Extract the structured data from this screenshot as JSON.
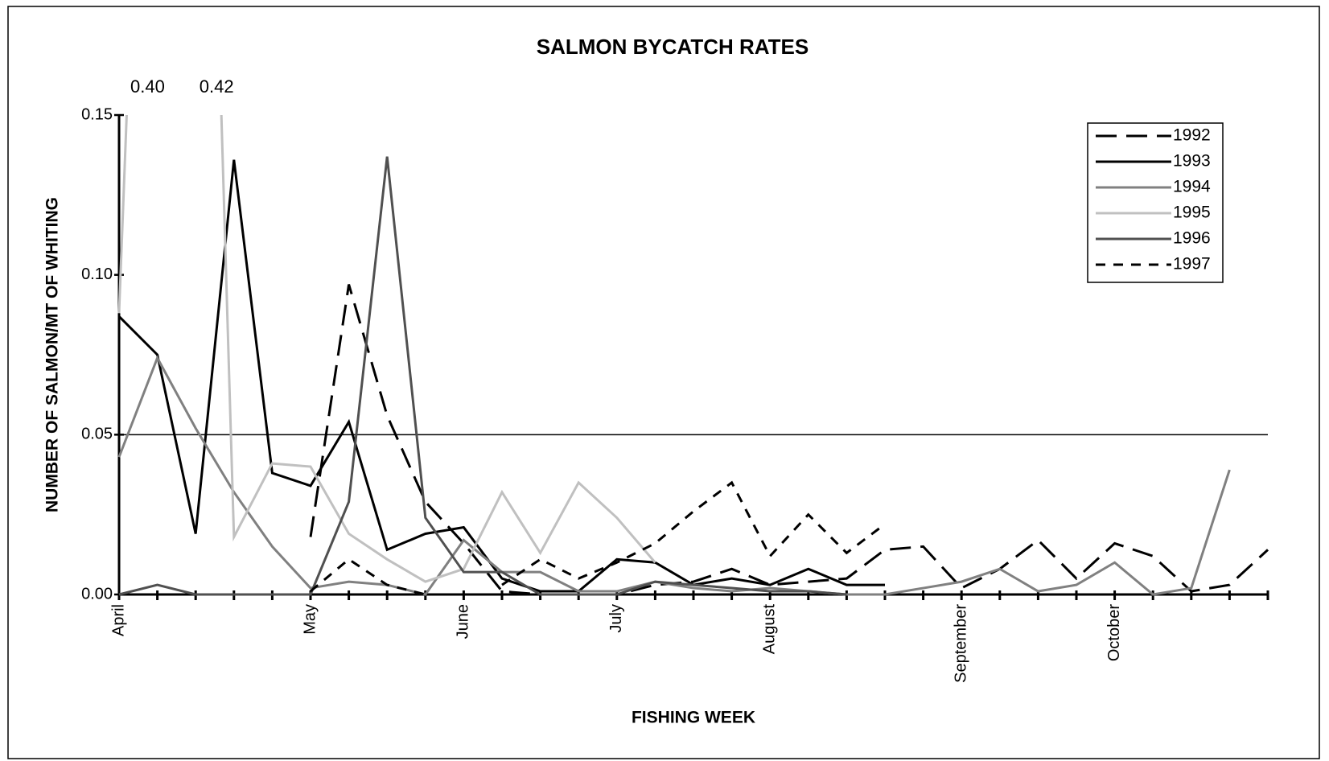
{
  "chart_data": {
    "type": "line",
    "title": "SALMON BYCATCH RATES",
    "x_label": "FISHING WEEK",
    "y_label": "NUMBER OF SALMON/MT OF WHITING",
    "categories": [
      "April",
      null,
      null,
      null,
      null,
      "May",
      null,
      null,
      null,
      "June",
      null,
      null,
      null,
      "July",
      null,
      null,
      null,
      "August",
      null,
      null,
      null,
      null,
      "September",
      null,
      null,
      null,
      "October",
      null,
      null,
      null,
      null
    ],
    "ylim": [
      0,
      0.15
    ],
    "yticks": [
      {
        "value": 0,
        "label": "0.00"
      },
      {
        "value": 0.05,
        "label": "0.05"
      },
      {
        "value": 0.1,
        "label": "0.10"
      },
      {
        "value": 0.15,
        "label": "0.15"
      }
    ],
    "reference_line": 0.05,
    "legend": "top-right",
    "series": [
      {
        "name": "1992",
        "color": "#000000",
        "dash": "long",
        "values": [
          null,
          null,
          null,
          null,
          null,
          0.018,
          0.097,
          0.056,
          0.029,
          0.016,
          0.001,
          0.0,
          0.0,
          0.0,
          0.003,
          0.004,
          0.008,
          0.003,
          0.004,
          0.005,
          0.014,
          0.015,
          0.002,
          0.008,
          0.017,
          0.005,
          0.016,
          0.012,
          0.001,
          0.003,
          0.014
        ]
      },
      {
        "name": "1993",
        "color": "#000000",
        "values": [
          0.087,
          0.075,
          0.019,
          0.136,
          0.038,
          0.034,
          0.054,
          0.014,
          0.019,
          0.021,
          0.005,
          0.001,
          0.001,
          0.011,
          0.01,
          0.003,
          0.005,
          0.003,
          0.008,
          0.003,
          0.003,
          null,
          null,
          null,
          null,
          null,
          null,
          null,
          null,
          null,
          null
        ]
      },
      {
        "name": "1994",
        "color": "#808080",
        "values": [
          0.043,
          0.074,
          0.052,
          0.032,
          0.015,
          0.002,
          0.004,
          0.003,
          0.0,
          0.017,
          0.007,
          0.007,
          0.001,
          0.001,
          0.004,
          0.002,
          0.001,
          0.002,
          0.001,
          0.0,
          0.0,
          0.002,
          0.004,
          0.008,
          0.001,
          0.003,
          0.01,
          0.0,
          0.002,
          0.039,
          null
        ]
      },
      {
        "name": "1995",
        "color": "#c0c0c0",
        "values": [
          0.088,
          0.4,
          0.42,
          0.018,
          0.041,
          0.04,
          0.019,
          0.011,
          0.004,
          0.008,
          0.032,
          0.013,
          0.035,
          0.024,
          0.01,
          null,
          null,
          null,
          null,
          null,
          null,
          null,
          null,
          null,
          null,
          null,
          null,
          null,
          null,
          null,
          null
        ],
        "value_labels": [
          null,
          "0.40",
          "0.42",
          null,
          null,
          null,
          null,
          null,
          null,
          null,
          null,
          null,
          null,
          null,
          null,
          null,
          null,
          null,
          null,
          null,
          null,
          null,
          null,
          null,
          null,
          null,
          null,
          null,
          null,
          null,
          null
        ]
      },
      {
        "name": "1996",
        "color": "#505050",
        "values": [
          0.0,
          0.003,
          0.0,
          0.0,
          0.0,
          0.0,
          0.029,
          0.137,
          0.024,
          0.007,
          0.007,
          0.0,
          0.0,
          0.0,
          0.004,
          0.003,
          0.002,
          0.001,
          0.001,
          0.0,
          null,
          null,
          null,
          null,
          null,
          null,
          null,
          null,
          null,
          null,
          null
        ]
      },
      {
        "name": "1997",
        "color": "#000000",
        "dash": "short",
        "values": [
          null,
          null,
          null,
          null,
          null,
          0.001,
          0.011,
          0.003,
          0.0,
          null,
          0.003,
          0.011,
          0.005,
          0.01,
          0.016,
          0.026,
          0.035,
          0.012,
          0.025,
          0.013,
          0.022,
          null,
          null,
          null,
          null,
          null,
          null,
          null,
          null,
          null,
          null
        ]
      }
    ]
  }
}
